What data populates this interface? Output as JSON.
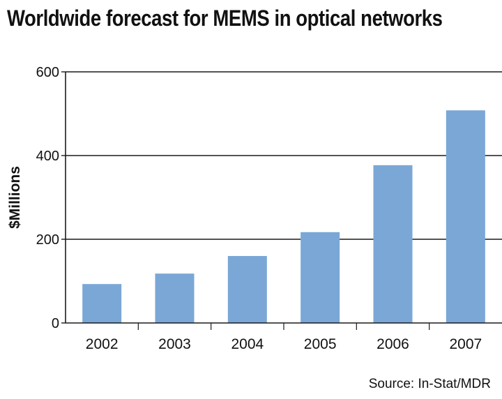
{
  "chart_data": {
    "type": "bar",
    "title": "Worldwide forecast for MEMS in optical networks",
    "ylabel": "$Millions",
    "xlabel": "",
    "source": "Source: In-Stat/MDR",
    "categories": [
      "2002",
      "2003",
      "2004",
      "2005",
      "2006",
      "2007"
    ],
    "values": [
      93,
      118,
      160,
      217,
      377,
      508
    ],
    "ylim": [
      0,
      600
    ],
    "yticks": [
      0,
      200,
      400,
      600
    ],
    "gridlines": [
      200,
      400,
      600
    ],
    "grid": true,
    "legend": "none",
    "bar_color": "#7aa7d6"
  }
}
